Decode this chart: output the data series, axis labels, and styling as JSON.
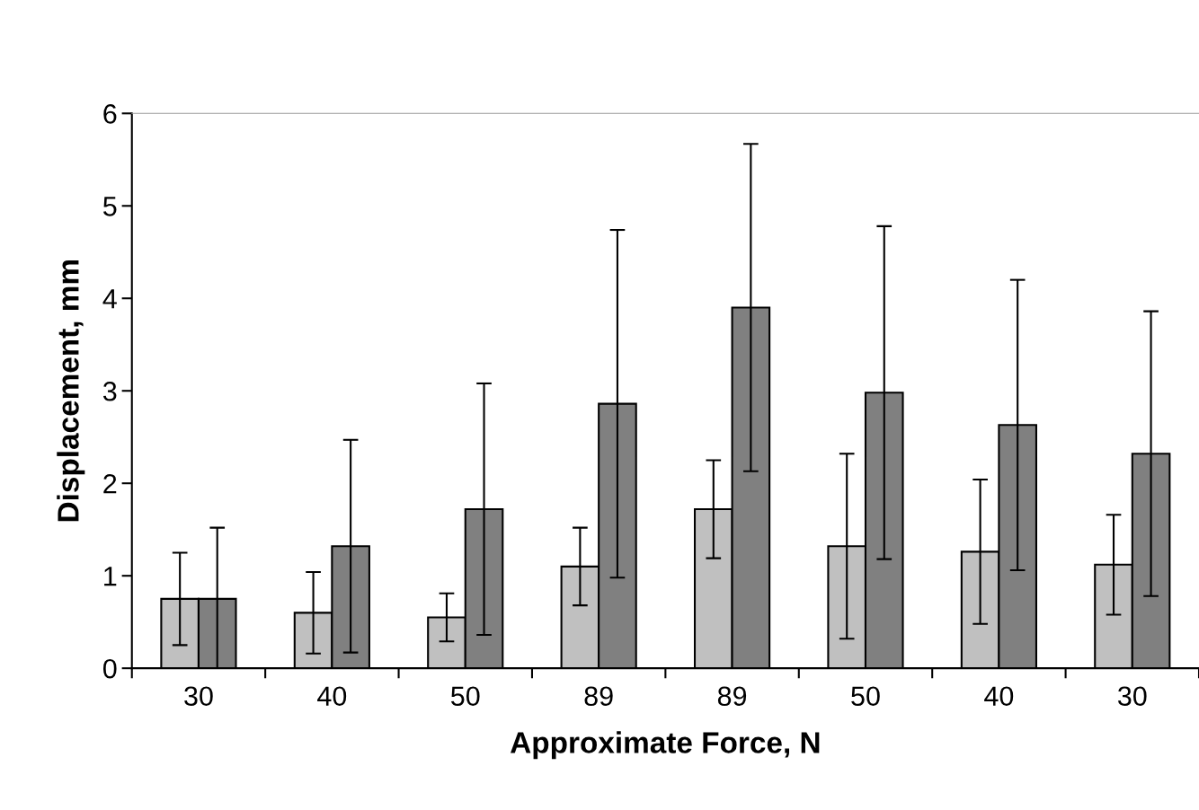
{
  "chart_data": {
    "type": "bar",
    "xlabel": "Approximate Force, N",
    "ylabel": "Displacement, mm",
    "categories": [
      "30",
      "40",
      "50",
      "89",
      "89",
      "50",
      "40",
      "30"
    ],
    "series": [
      {
        "color": "#c0c0c0",
        "values": [
          0.75,
          0.6,
          0.55,
          1.1,
          1.72,
          1.32,
          1.26,
          1.12
        ],
        "errors": [
          0.5,
          0.44,
          0.26,
          0.42,
          0.53,
          1.0,
          0.78,
          0.54
        ]
      },
      {
        "color": "#808080",
        "values": [
          0.75,
          1.32,
          1.72,
          2.86,
          3.9,
          2.98,
          2.63,
          2.32
        ],
        "errors": [
          0.77,
          1.15,
          1.36,
          1.88,
          1.77,
          1.8,
          1.57,
          1.54
        ]
      }
    ],
    "ylim": [
      0,
      6
    ],
    "yticks": [
      0,
      1,
      2,
      3,
      4,
      5,
      6
    ],
    "grid": false
  }
}
